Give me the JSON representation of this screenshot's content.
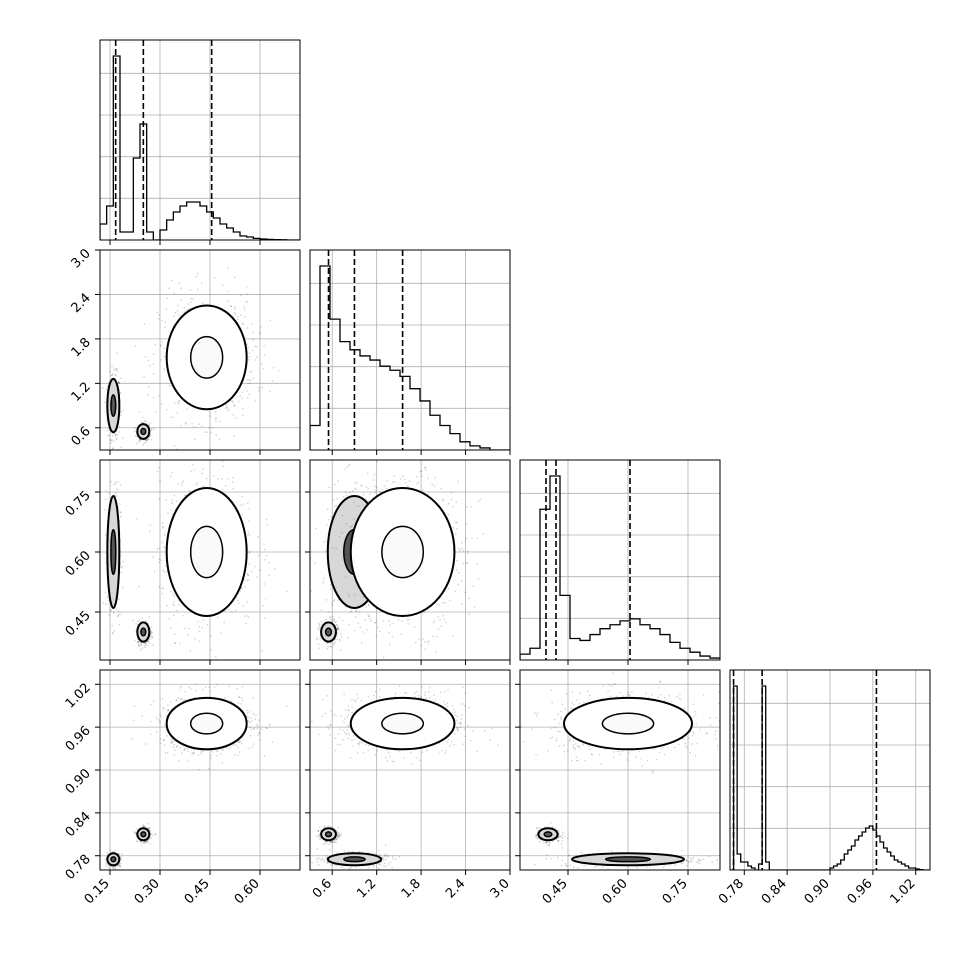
{
  "chart_data": {
    "type": "corner",
    "parameters": [
      {
        "ticks": [
          0.15,
          0.3,
          0.45,
          0.6
        ],
        "tick_labels": [
          "0.15",
          "0.30",
          "0.45",
          "0.60"
        ],
        "range": [
          0.12,
          0.72
        ]
      },
      {
        "ticks": [
          0.6,
          1.2,
          1.8,
          2.4,
          3.0
        ],
        "tick_labels": [
          "0.6",
          "1.2",
          "1.8",
          "2.4",
          "3.0"
        ],
        "range": [
          0.3,
          3.0
        ]
      },
      {
        "ticks": [
          0.45,
          0.6,
          0.75
        ],
        "tick_labels": [
          "0.45",
          "0.60",
          "0.75"
        ],
        "range": [
          0.33,
          0.83
        ]
      },
      {
        "ticks": [
          0.78,
          0.84,
          0.9,
          0.96,
          1.02
        ],
        "tick_labels": [
          "0.78",
          "0.84",
          "0.90",
          "0.96",
          "1.02"
        ],
        "range": [
          0.76,
          1.04
        ]
      }
    ],
    "histograms": [
      {
        "bins": [
          0.12,
          0.14,
          0.16,
          0.18,
          0.2,
          0.22,
          0.24,
          0.26,
          0.28,
          0.3,
          0.32,
          0.34,
          0.36,
          0.38,
          0.4,
          0.42,
          0.44,
          0.46,
          0.48,
          0.5,
          0.52,
          0.54,
          0.56,
          0.58,
          0.6,
          0.62,
          0.64,
          0.66,
          0.68,
          0.7,
          0.72
        ],
        "counts": [
          0.08,
          0.17,
          0.92,
          0.04,
          0.04,
          0.41,
          0.58,
          0.04,
          0.0,
          0.05,
          0.1,
          0.14,
          0.17,
          0.19,
          0.19,
          0.17,
          0.14,
          0.11,
          0.08,
          0.06,
          0.04,
          0.02,
          0.015,
          0.008,
          0.005,
          0.003,
          0.002,
          0.001,
          0.0,
          0.0
        ],
        "quantiles": [
          0.167,
          0.25,
          0.455
        ]
      },
      {
        "bins": [
          0.3,
          0.435,
          0.57,
          0.705,
          0.84,
          0.975,
          1.11,
          1.245,
          1.38,
          1.515,
          1.65,
          1.785,
          1.92,
          2.055,
          2.19,
          2.325,
          2.46,
          2.595,
          2.73,
          2.865,
          3.0
        ],
        "counts": [
          0.12,
          0.9,
          0.64,
          0.53,
          0.49,
          0.46,
          0.44,
          0.41,
          0.39,
          0.36,
          0.3,
          0.24,
          0.17,
          0.12,
          0.08,
          0.04,
          0.02,
          0.01,
          0.0,
          0.0
        ],
        "quantiles": [
          0.55,
          0.9,
          1.55
        ]
      },
      {
        "bins": [
          0.33,
          0.355,
          0.38,
          0.405,
          0.43,
          0.455,
          0.48,
          0.505,
          0.53,
          0.555,
          0.58,
          0.605,
          0.63,
          0.655,
          0.68,
          0.705,
          0.73,
          0.755,
          0.78,
          0.805,
          0.83
        ],
        "counts": [
          0.03,
          0.06,
          0.77,
          0.94,
          0.33,
          0.11,
          0.1,
          0.13,
          0.16,
          0.18,
          0.2,
          0.21,
          0.18,
          0.16,
          0.13,
          0.09,
          0.06,
          0.04,
          0.02,
          0.01
        ],
        "quantiles": [
          0.395,
          0.42,
          0.605
        ]
      },
      {
        "bins": [
          0.76,
          0.765,
          0.77,
          0.775,
          0.78,
          0.785,
          0.79,
          0.795,
          0.8,
          0.805,
          0.81,
          0.815,
          0.82,
          0.825,
          0.83,
          0.835,
          0.84,
          0.845,
          0.85,
          0.855,
          0.86,
          0.865,
          0.87,
          0.875,
          0.88,
          0.885,
          0.89,
          0.895,
          0.9,
          0.905,
          0.91,
          0.915,
          0.92,
          0.925,
          0.93,
          0.935,
          0.94,
          0.945,
          0.95,
          0.955,
          0.96,
          0.965,
          0.97,
          0.975,
          0.98,
          0.985,
          0.99,
          0.995,
          1.0,
          1.005,
          1.01,
          1.015,
          1.02,
          1.025,
          1.03,
          1.035,
          1.04
        ],
        "counts": [
          0,
          0.92,
          0.08,
          0.04,
          0.04,
          0.02,
          0.01,
          0.0,
          0.03,
          0.92,
          0.04,
          0.0,
          0,
          0,
          0,
          0,
          0,
          0,
          0,
          0,
          0,
          0,
          0,
          0,
          0,
          0,
          0,
          0,
          0.01,
          0.02,
          0.03,
          0.05,
          0.08,
          0.1,
          0.12,
          0.15,
          0.17,
          0.19,
          0.21,
          0.22,
          0.2,
          0.17,
          0.14,
          0.11,
          0.09,
          0.07,
          0.05,
          0.04,
          0.03,
          0.02,
          0.01,
          0.01,
          0.005,
          0.002,
          0,
          0
        ],
        "quantiles": [
          0.765,
          0.805,
          0.965
        ]
      }
    ],
    "modes": [
      {
        "p": [
          0.16,
          0.9,
          0.6,
          0.775
        ],
        "spread": [
          0.008,
          0.18,
          0.07,
          0.004
        ],
        "weight": 0.25
      },
      {
        "p": [
          0.25,
          0.55,
          0.4,
          0.81
        ],
        "spread": [
          0.008,
          0.05,
          0.012,
          0.004
        ],
        "weight": 0.25
      },
      {
        "p": [
          0.44,
          1.55,
          0.6,
          0.965
        ],
        "spread": [
          0.06,
          0.35,
          0.08,
          0.018
        ],
        "weight": 0.5
      }
    ],
    "grid": true,
    "legend": "none"
  }
}
